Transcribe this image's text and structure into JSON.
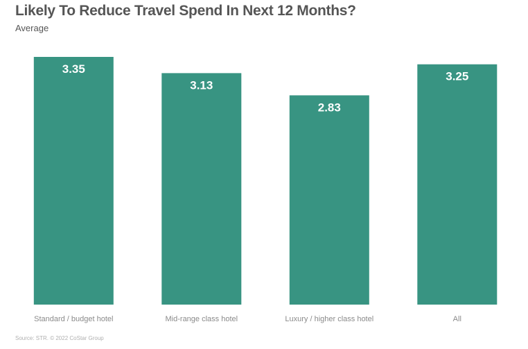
{
  "chart_data": {
    "type": "bar",
    "title": "Likely To Reduce Travel Spend In Next 12 Months?",
    "subtitle": "Average",
    "categories": [
      "Standard / budget hotel",
      "Mid-range class hotel",
      "Luxury / higher class hotel",
      "All"
    ],
    "values": [
      3.35,
      3.13,
      2.83,
      3.25
    ],
    "value_labels": [
      "3.35",
      "3.13",
      "2.83",
      "3.25"
    ],
    "xlabel": "",
    "ylabel": "",
    "grid": false,
    "legend": "none"
  },
  "colors": {
    "bar": "#389482",
    "title": "#555555",
    "axis_text": "#8a8a8a"
  },
  "source": "Source: STR. © 2022 CoStar Group"
}
